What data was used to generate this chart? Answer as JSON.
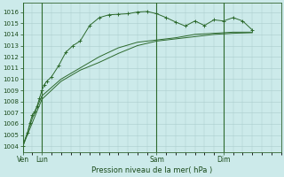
{
  "bg_color": "#cceaea",
  "grid_color": "#aacccc",
  "line_color": "#2d6a2d",
  "title": "Pression niveau de la mer( hPa )",
  "ylabel_ticks": [
    1004,
    1005,
    1006,
    1007,
    1008,
    1009,
    1010,
    1011,
    1012,
    1013,
    1014,
    1015,
    1016
  ],
  "xlim": [
    0,
    108
  ],
  "ylim": [
    1003.5,
    1016.8
  ],
  "xtick_positions": [
    0,
    8,
    56,
    84
  ],
  "xtick_labels": [
    "Ven",
    "Lun",
    "Sam",
    "Dim"
  ],
  "vlines": [
    0,
    8,
    56,
    84
  ],
  "line1_markers": [
    [
      0,
      1004.0
    ],
    [
      2,
      1005.2
    ],
    [
      3,
      1006.1
    ],
    [
      4,
      1006.8
    ],
    [
      5,
      1007.1
    ],
    [
      6,
      1007.6
    ],
    [
      7,
      1008.3
    ],
    [
      8,
      1009.0
    ],
    [
      9,
      1009.5
    ],
    [
      10,
      1009.8
    ],
    [
      12,
      1010.2
    ],
    [
      15,
      1011.2
    ],
    [
      18,
      1012.4
    ],
    [
      21,
      1013.0
    ],
    [
      24,
      1013.4
    ],
    [
      28,
      1014.8
    ],
    [
      32,
      1015.5
    ],
    [
      36,
      1015.75
    ],
    [
      40,
      1015.8
    ],
    [
      44,
      1015.85
    ],
    [
      48,
      1016.0
    ],
    [
      52,
      1016.05
    ],
    [
      56,
      1015.85
    ],
    [
      60,
      1015.5
    ],
    [
      64,
      1015.1
    ],
    [
      68,
      1014.75
    ],
    [
      72,
      1015.2
    ],
    [
      76,
      1014.8
    ],
    [
      80,
      1015.3
    ],
    [
      84,
      1015.2
    ],
    [
      88,
      1015.5
    ],
    [
      92,
      1015.2
    ],
    [
      96,
      1014.4
    ]
  ],
  "line2": [
    [
      0,
      1004.0
    ],
    [
      4,
      1006.5
    ],
    [
      8,
      1008.5
    ],
    [
      16,
      1010.0
    ],
    [
      24,
      1011.0
    ],
    [
      32,
      1012.0
    ],
    [
      40,
      1012.8
    ],
    [
      48,
      1013.3
    ],
    [
      56,
      1013.5
    ],
    [
      64,
      1013.7
    ],
    [
      72,
      1014.0
    ],
    [
      80,
      1014.1
    ],
    [
      88,
      1014.2
    ],
    [
      96,
      1014.2
    ]
  ],
  "line3": [
    [
      0,
      1004.0
    ],
    [
      8,
      1008.2
    ],
    [
      16,
      1009.8
    ],
    [
      24,
      1010.8
    ],
    [
      32,
      1011.5
    ],
    [
      40,
      1012.3
    ],
    [
      48,
      1013.0
    ],
    [
      56,
      1013.4
    ],
    [
      64,
      1013.6
    ],
    [
      72,
      1013.8
    ],
    [
      80,
      1014.0
    ],
    [
      88,
      1014.1
    ],
    [
      96,
      1014.15
    ]
  ]
}
